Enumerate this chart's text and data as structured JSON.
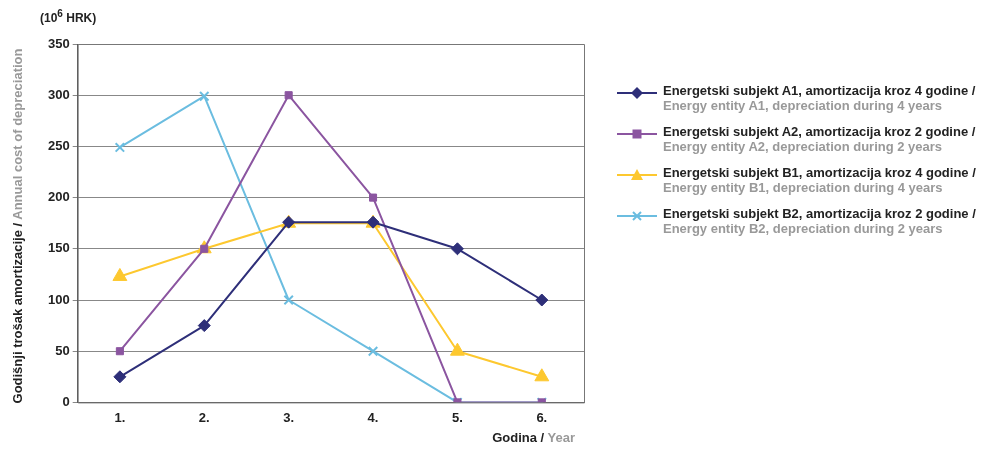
{
  "chart_data": {
    "type": "line",
    "ylabel": "Godišnji trošak amortizacije / Annual cost of depreciation",
    "xlabel": "Godina / Year",
    "annotations": [
      "(10$^{6}$ HRK)"
    ],
    "categories": [
      "1.",
      "2.",
      "3.",
      "4.",
      "5.",
      "6."
    ],
    "ylim": [
      0,
      350
    ],
    "yticks": [
      0,
      50,
      100,
      150,
      200,
      250,
      300,
      350
    ],
    "grid": "y",
    "legend": "right",
    "series": [
      {
        "name": "Energetski subjekt A1, amortizacija kroz 4 godine / Energy entity A1, depreciation during 4 years",
        "color": "#2e2f79",
        "marker": "diamond",
        "values": [
          25,
          75,
          176,
          176,
          150,
          100
        ]
      },
      {
        "name": "Energetski subjekt A2, amortizacija kroz 2 godine / Energy entity A2, depreciation during 2 years",
        "color": "#8b55a0",
        "marker": "square",
        "values": [
          50,
          150,
          300,
          200,
          0,
          0
        ]
      },
      {
        "name": "Energetski subjekt B1, amortizacija kroz 4 godine / Energy entity B1, depreciation during 4 years",
        "color": "#fdc82f",
        "marker": "triangle",
        "values": [
          123,
          150,
          175,
          175,
          50,
          25
        ]
      },
      {
        "name": "Energetski subjekt B2, amortizacija kroz 2 godine / Energy entity B2, depreciation during 2 years",
        "color": "#6bbde0",
        "marker": "cross",
        "values": [
          249,
          299,
          100,
          50,
          0,
          0
        ]
      }
    ]
  }
}
